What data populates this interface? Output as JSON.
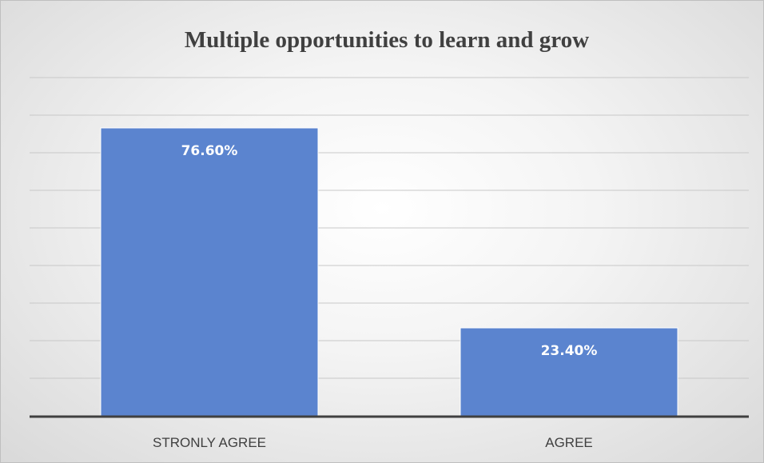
{
  "chart_data": {
    "type": "bar",
    "title": "Multiple opportunities to learn and grow",
    "categories": [
      "STRONLY AGREE",
      "AGREE"
    ],
    "values": [
      76.6,
      23.4
    ],
    "data_labels": [
      "76.60%",
      "23.40%"
    ],
    "ylim": [
      0,
      90
    ],
    "grid": true,
    "legend": "none",
    "bar_color": "#5b84cf",
    "bar_edge_color": "#ffffff",
    "gridline_color": "#c8c8c8",
    "axis_color": "#404040"
  }
}
